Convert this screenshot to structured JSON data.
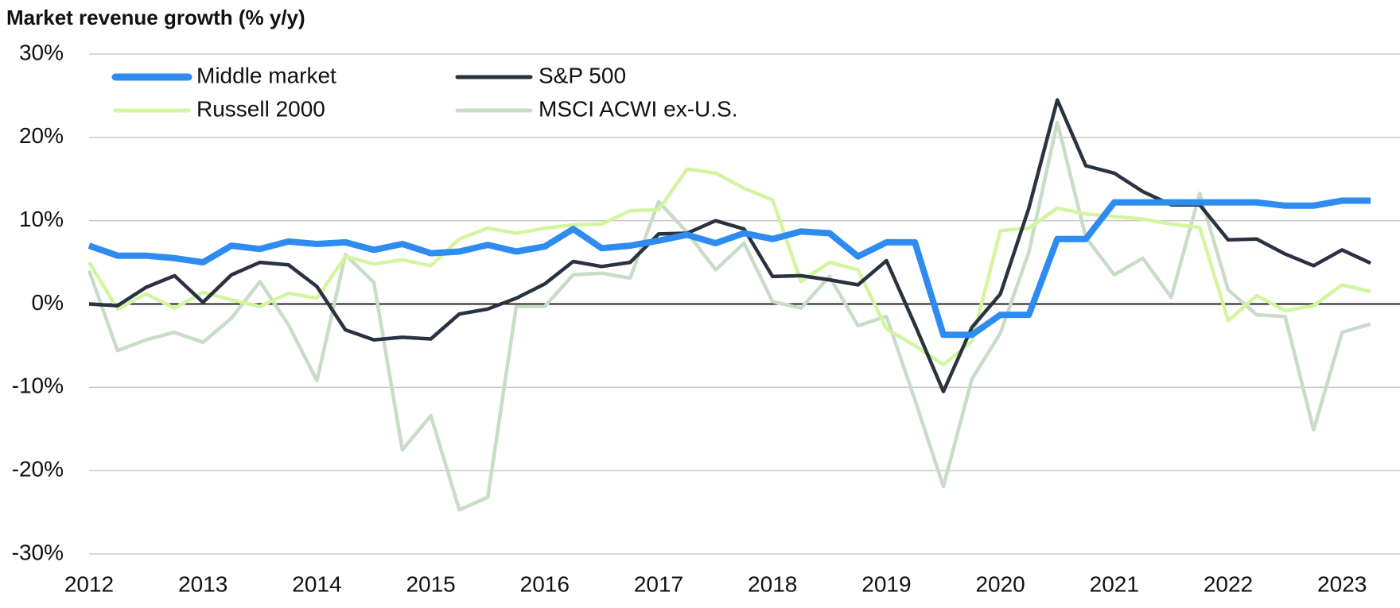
{
  "chart_data": {
    "type": "line",
    "title": "Market revenue growth (% y/y)",
    "categories": [
      "2012",
      null,
      null,
      null,
      "2013",
      null,
      null,
      null,
      "2014",
      null,
      null,
      null,
      "2015",
      null,
      null,
      null,
      "2016",
      null,
      null,
      null,
      "2017",
      null,
      null,
      null,
      "2018",
      null,
      null,
      null,
      "2019",
      null,
      null,
      null,
      "2020",
      null,
      null,
      null,
      "2021",
      null,
      null,
      null,
      "2022",
      null,
      null,
      null,
      "2023",
      null
    ],
    "series": [
      {
        "name": "Middle market",
        "color": "#2e8bf0",
        "values": [
          7.0,
          5.8,
          5.8,
          5.5,
          5.0,
          7.0,
          6.6,
          7.5,
          7.2,
          7.4,
          6.5,
          7.2,
          6.1,
          6.3,
          7.1,
          6.3,
          6.9,
          9.0,
          6.7,
          7.0,
          7.6,
          8.3,
          7.3,
          8.5,
          7.8,
          8.7,
          8.5,
          5.7,
          7.4,
          7.4,
          -3.7,
          -3.7,
          -1.3,
          -1.3,
          7.8,
          7.8,
          12.2,
          12.2,
          12.2,
          12.2,
          12.2,
          12.2,
          11.8,
          11.8,
          12.4,
          12.4
        ]
      },
      {
        "name": "S&P 500",
        "color": "#2a3240",
        "values": [
          0,
          -0.2,
          2.0,
          3.4,
          0.2,
          3.5,
          5.0,
          4.7,
          2.1,
          -3.1,
          -4.3,
          -4.0,
          -4.2,
          -1.2,
          -0.6,
          0.7,
          2.4,
          5.1,
          4.5,
          5.0,
          8.4,
          8.5,
          10.0,
          9.0,
          3.3,
          3.4,
          2.9,
          2.3,
          5.2,
          -2.5,
          -10.5,
          -2.8,
          1.2,
          11.5,
          24.5,
          16.6,
          15.7,
          13.5,
          11.9,
          11.9,
          7.7,
          7.8,
          6.0,
          4.6,
          6.5,
          4.9
        ]
      },
      {
        "name": "Russell 2000",
        "color": "#d4f5a0",
        "values": [
          5.0,
          -0.6,
          1.2,
          -0.5,
          1.4,
          0.5,
          -0.3,
          1.3,
          0.7,
          5.7,
          4.8,
          5.3,
          4.6,
          7.8,
          9.1,
          8.5,
          9.1,
          9.5,
          9.6,
          11.2,
          11.3,
          16.2,
          15.7,
          13.9,
          12.5,
          2.7,
          5.0,
          4.1,
          -3.0,
          -5.0,
          -7.3,
          -4.5,
          8.8,
          9.1,
          11.5,
          10.8,
          10.5,
          10.2,
          9.6,
          9.2,
          -2.0,
          1.0,
          -0.8,
          -0.2,
          2.3,
          1.5
        ]
      },
      {
        "name": "MSCI ACWI ex-U.S.",
        "color": "#c8dcc8",
        "values": [
          4.0,
          -5.6,
          -4.3,
          -3.4,
          -4.6,
          -1.7,
          2.7,
          -2.5,
          -9.2,
          5.9,
          2.6,
          -17.5,
          -13.4,
          -24.7,
          -23.2,
          -0.3,
          -0.3,
          3.5,
          3.7,
          3.1,
          12.3,
          8.6,
          4.1,
          7.3,
          0.3,
          -0.5,
          3.3,
          -2.6,
          -1.5,
          -11.5,
          -21.9,
          -9.0,
          -3.5,
          6.2,
          21.8,
          8.0,
          3.5,
          5.5,
          0.8,
          13.3,
          1.7,
          -1.3,
          -1.5,
          -15.1,
          -3.4,
          -2.4
        ]
      }
    ],
    "ylim": [
      -30,
      30
    ],
    "yticks": [
      {
        "value": -30,
        "label": "-30%"
      },
      {
        "value": -20,
        "label": "-20%"
      },
      {
        "value": -10,
        "label": "-10%"
      },
      {
        "value": 0,
        "label": "0%"
      },
      {
        "value": 10,
        "label": "10%"
      },
      {
        "value": 20,
        "label": "20%"
      },
      {
        "value": 30,
        "label": "30%"
      }
    ],
    "grid": true,
    "legend": "top-left"
  }
}
